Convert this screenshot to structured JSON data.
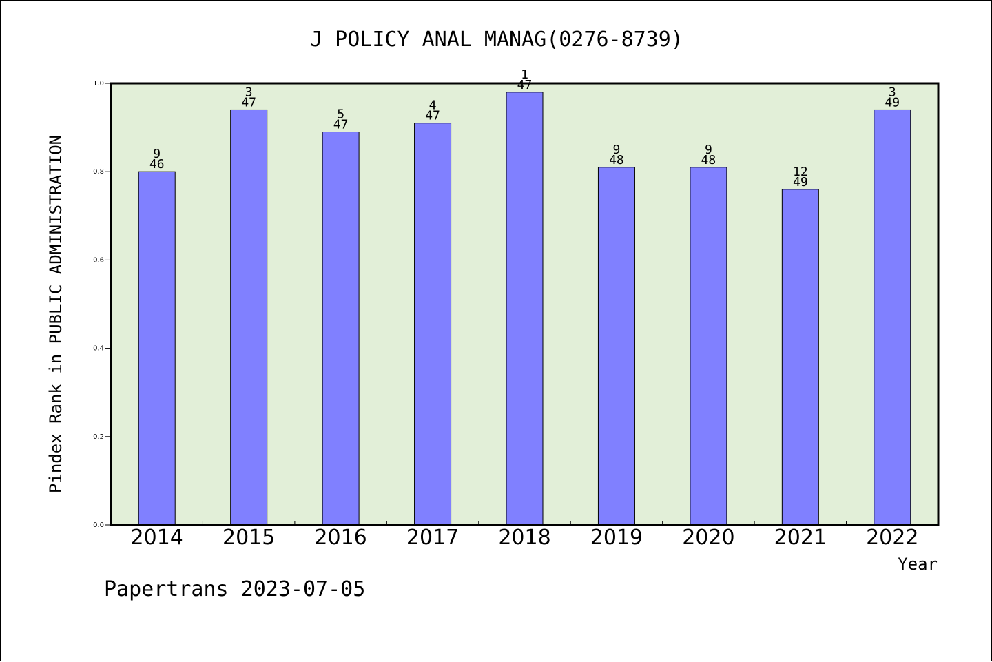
{
  "chart_data": {
    "type": "bar",
    "title": "J POLICY ANAL MANAG(0276-8739)",
    "xlabel": "Year",
    "ylabel": "Pindex Rank in PUBLIC ADMINISTRATION",
    "categories": [
      "2014",
      "2015",
      "2016",
      "2017",
      "2018",
      "2019",
      "2020",
      "2021",
      "2022"
    ],
    "values": [
      0.8,
      0.94,
      0.89,
      0.91,
      0.98,
      0.81,
      0.81,
      0.76,
      0.94
    ],
    "rank": [
      "9",
      "3",
      "5",
      "4",
      "1",
      "9",
      "9",
      "12",
      "3"
    ],
    "total": [
      "46",
      "47",
      "47",
      "47",
      "47",
      "48",
      "48",
      "49",
      "49"
    ],
    "ylim": [
      0,
      1.0
    ],
    "yticks": [
      "0.0",
      "0.2",
      "0.4",
      "0.6",
      "0.8",
      "1.0"
    ],
    "grid": false,
    "colors": {
      "bar": "#8080ff",
      "plot_background": "#e2efd8"
    }
  },
  "footer": "Papertrans 2023-07-05"
}
